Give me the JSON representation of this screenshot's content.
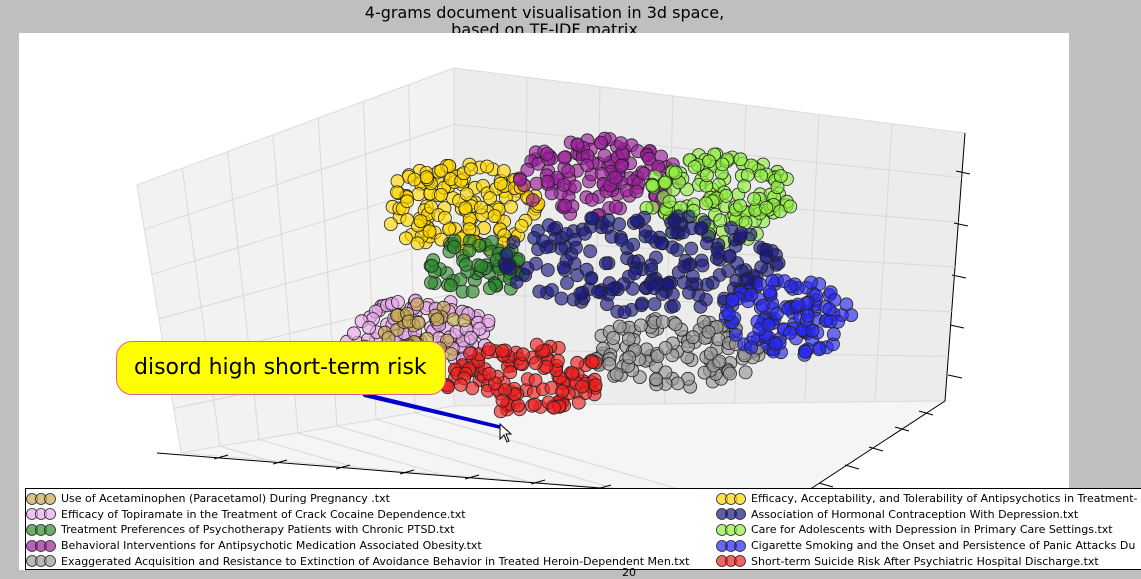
{
  "chart_data": {
    "type": "scatter",
    "title": "4-grams document visualisation in 3d space,\nbased on TF-IDF matrix",
    "projection": "3d",
    "grid": true,
    "legend_placement": "bottom",
    "series": [
      {
        "name": "Use of Acetaminophen (Paracetamol) During Pregnancy .txt",
        "color": "#c8a850"
      },
      {
        "name": "Efficacy of Topiramate in the Treatment of Crack Cocaine Dependence.txt",
        "color": "#e8a8e8"
      },
      {
        "name": "Treatment Preferences of Psychotherapy Patients with Chronic PTSD.txt",
        "color": "#2e8b2e"
      },
      {
        "name": "Behavioral Interventions for Antipsychotic Medication Associated Obesity.txt",
        "color": "#9b1f9b"
      },
      {
        "name": "Exaggerated Acquisition and Resistance to Extinction of Avoidance Behavior in Treated Heroin-Dependent Men.txt",
        "color": "#9a9a9a"
      },
      {
        "name": "Efficacy, Acceptability, and Tolerability of Antipsychotics in Treatment-",
        "color": "#ffd700"
      },
      {
        "name": "Association of Hormonal Contraception With Depression.txt",
        "color": "#1a1a80"
      },
      {
        "name": "Care for Adolescents with Depression in Primary Care Settings.txt",
        "color": "#90ee40"
      },
      {
        "name": "Cigarette Smoking and the Onset and Persistence of Panic Attacks Du",
        "color": "#2828f0"
      },
      {
        "name": "Short-term Suicide Risk After Psychiatric Hospital Discharge.txt",
        "color": "#f02020"
      }
    ],
    "annotation": "disord high short-term risk"
  },
  "axis_fragments": {
    "bottom_tick": "20"
  }
}
